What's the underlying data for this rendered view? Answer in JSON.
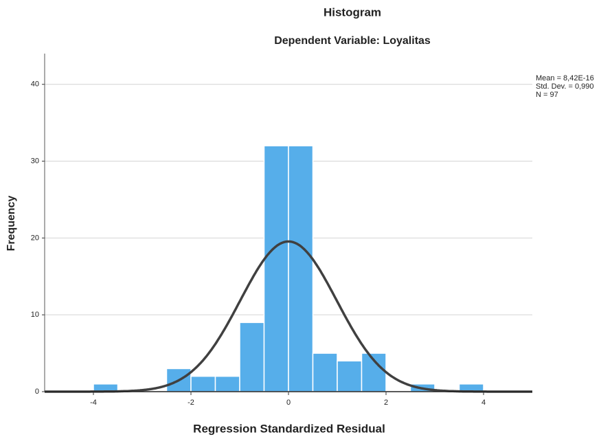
{
  "chart_data": {
    "type": "histogram",
    "title": "Histogram",
    "subtitle": "Dependent Variable: Loyalitas",
    "x_label": "Regression Standardized Residual",
    "y_label": "Frequency",
    "bins": [
      -4,
      -3.5,
      -3,
      -2.5,
      -2,
      -1.5,
      -1,
      -0.5,
      0,
      0.5,
      1,
      1.5,
      2,
      2.5,
      3,
      3.5,
      4
    ],
    "values": [
      1,
      0,
      0,
      3,
      2,
      2,
      9,
      32,
      32,
      5,
      4,
      5,
      0,
      1,
      0,
      1
    ],
    "color": "#56aeea",
    "curve_color": "#404040",
    "xlim": [
      -5,
      5
    ],
    "xticks": [
      -4,
      -2,
      0,
      2,
      4
    ],
    "ylim": [
      0,
      44
    ],
    "yticks": [
      0,
      10,
      20,
      30,
      40
    ],
    "grid": true,
    "stats": {
      "mean": {
        "value": 8.42e-16,
        "label": "Mean = 8,42E-16"
      },
      "std_dev": {
        "value": 0.99,
        "label": "Std. Dev. = 0,990"
      },
      "n": {
        "value": 97,
        "label": "N = 97"
      }
    }
  }
}
